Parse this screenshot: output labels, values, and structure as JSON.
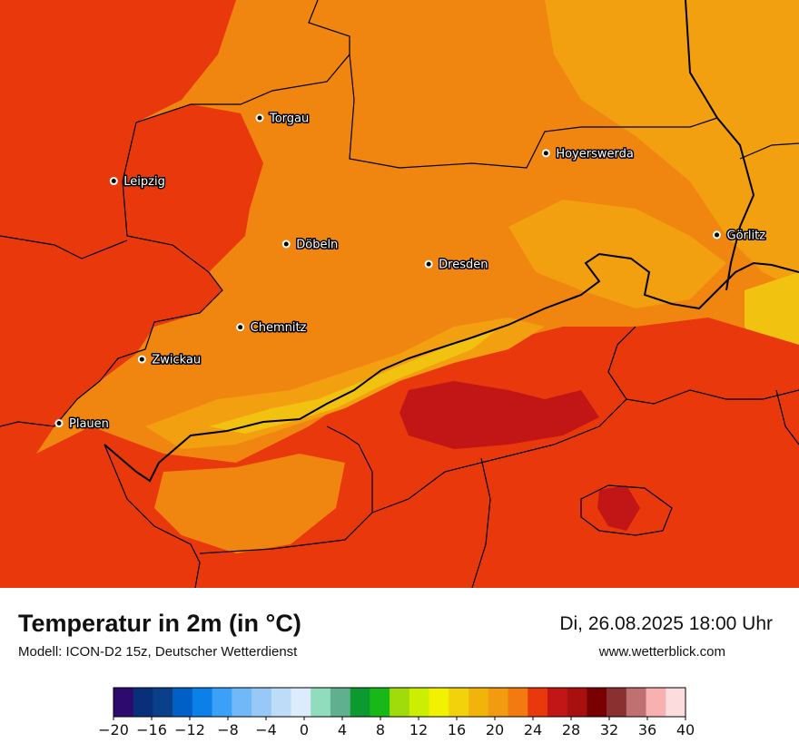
{
  "map": {
    "cities": [
      {
        "name": "Torgau",
        "lon": 13.006,
        "lat": 51.56
      },
      {
        "name": "Hoyerswerda",
        "lon": 14.246,
        "lat": 51.437
      },
      {
        "name": "Leipzig",
        "lon": 12.374,
        "lat": 51.34
      },
      {
        "name": "Görlitz",
        "lon": 14.986,
        "lat": 51.152
      },
      {
        "name": "Döbeln",
        "lon": 13.121,
        "lat": 51.12
      },
      {
        "name": "Dresden",
        "lon": 13.738,
        "lat": 51.05
      },
      {
        "name": "Chemnitz",
        "lon": 12.922,
        "lat": 50.83
      },
      {
        "name": "Zwickau",
        "lon": 12.496,
        "lat": 50.718
      },
      {
        "name": "Plauen",
        "lon": 12.137,
        "lat": 50.495
      }
    ],
    "colors": {
      "base": "#f08510",
      "warm": "#e8380c",
      "mild": "#f2a010",
      "cool": "#f2c210",
      "hot": "#c21515",
      "border": "#000000"
    }
  },
  "header": {
    "title": "Temperatur in 2m (in °C)",
    "subtitle": "Modell: ICON-D2 15z, Deutscher Wetterdienst",
    "datetime": "Di, 26.08.2025 18:00 Uhr",
    "website": "www.wetterblick.com"
  },
  "legend": {
    "labels": [
      "−20",
      "−16",
      "−12",
      "−8",
      "−4",
      "0",
      "4",
      "8",
      "12",
      "16",
      "20",
      "24",
      "28",
      "32",
      "36",
      "40"
    ],
    "colors": [
      "#2d0a6e",
      "#0a2f7a",
      "#0a3f8a",
      "#0060c8",
      "#0a80e8",
      "#3aa0f8",
      "#70b8f8",
      "#98c8f8",
      "#bcdcf8",
      "#dcecfc",
      "#90dcbc",
      "#60b090",
      "#0c9a30",
      "#18b818",
      "#a0dc0a",
      "#ccee00",
      "#f2f200",
      "#f2d20a",
      "#f2b40a",
      "#f29a10",
      "#f27a10",
      "#e8380c",
      "#c21515",
      "#a81010",
      "#780000",
      "#8a3030",
      "#c07070",
      "#f8b0b0",
      "#fcdcdc"
    ]
  }
}
